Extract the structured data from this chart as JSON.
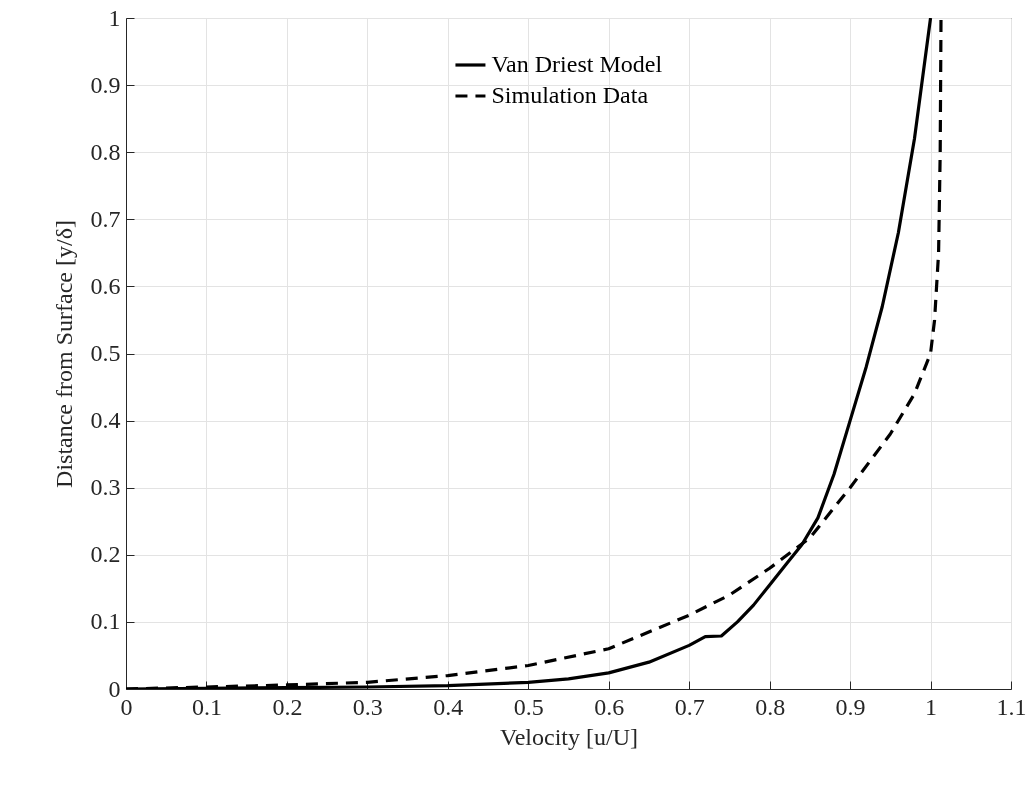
{
  "chart_data": {
    "type": "line",
    "xlabel": "Velocity [u/U]",
    "ylabel": "Distance from Surface [y/δ]",
    "xlim": [
      0,
      1.1
    ],
    "ylim": [
      0,
      1
    ],
    "xticks": [
      0,
      0.1,
      0.2,
      0.3,
      0.4,
      0.5,
      0.6,
      0.7,
      0.8,
      0.9,
      1,
      1.1
    ],
    "yticks": [
      0,
      0.1,
      0.2,
      0.3,
      0.4,
      0.5,
      0.6,
      0.7,
      0.8,
      0.9,
      1
    ],
    "grid": true,
    "legend": "top",
    "series": [
      {
        "name": "Van Driest Model",
        "color": "#000000",
        "line_style": "solid",
        "x": [
          0,
          0.1,
          0.2,
          0.3,
          0.4,
          0.5,
          0.55,
          0.6,
          0.65,
          0.7,
          0.72,
          0.74,
          0.76,
          0.78,
          0.8,
          0.82,
          0.84,
          0.86,
          0.88,
          0.9,
          0.92,
          0.94,
          0.96,
          0.98,
          1.0
        ],
        "values": [
          0,
          0.001,
          0.002,
          0.003,
          0.005,
          0.01,
          0.015,
          0.024,
          0.04,
          0.065,
          0.078,
          0.079,
          0.1,
          0.125,
          0.155,
          0.185,
          0.215,
          0.255,
          0.32,
          0.4,
          0.48,
          0.57,
          0.68,
          0.82,
          1.0
        ]
      },
      {
        "name": "Simulation Data",
        "color": "#000000",
        "line_style": "dashed",
        "x": [
          0,
          0.1,
          0.2,
          0.3,
          0.4,
          0.5,
          0.6,
          0.7,
          0.75,
          0.8,
          0.85,
          0.9,
          0.95,
          0.98,
          1.0,
          1.005,
          1.01,
          1.012,
          1.013
        ],
        "values": [
          0,
          0.003,
          0.006,
          0.01,
          0.02,
          0.035,
          0.06,
          0.11,
          0.14,
          0.18,
          0.225,
          0.3,
          0.38,
          0.44,
          0.5,
          0.55,
          0.65,
          0.8,
          1.0
        ]
      }
    ]
  }
}
